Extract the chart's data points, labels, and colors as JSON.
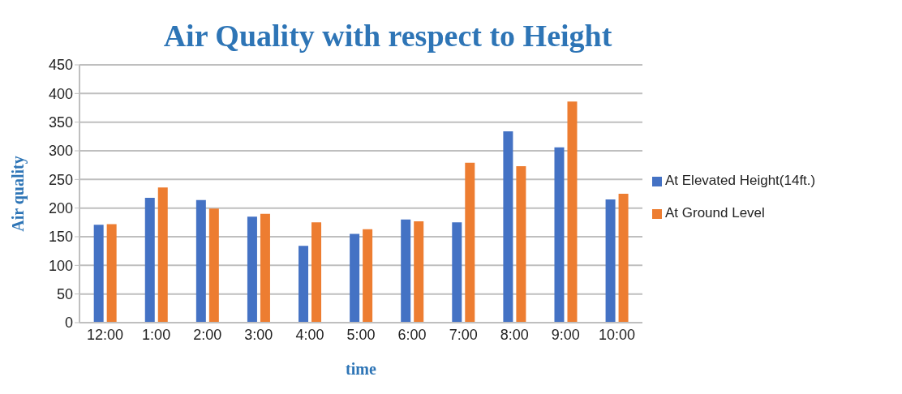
{
  "chart_data": {
    "type": "bar",
    "title": "Air Quality with respect to Height",
    "xlabel": "time",
    "ylabel": "Air quality",
    "categories": [
      "12:00",
      "1:00",
      "2:00",
      "3:00",
      "4:00",
      "5:00",
      "6:00",
      "7:00",
      "8:00",
      "9:00",
      "10:00"
    ],
    "series": [
      {
        "name": "At Elevated Height(14ft.)",
        "color": "#4472c4",
        "values": [
          171,
          218,
          214,
          185,
          134,
          155,
          180,
          175,
          334,
          306,
          215
        ]
      },
      {
        "name": "At Ground Level",
        "color": "#ed7d31",
        "values": [
          172,
          236,
          199,
          190,
          175,
          163,
          177,
          279,
          273,
          386,
          225
        ]
      }
    ],
    "ylim": [
      0,
      450
    ],
    "yticks": [
      0,
      50,
      100,
      150,
      200,
      250,
      300,
      350,
      400,
      450
    ],
    "grid": "y",
    "legend": "right"
  }
}
